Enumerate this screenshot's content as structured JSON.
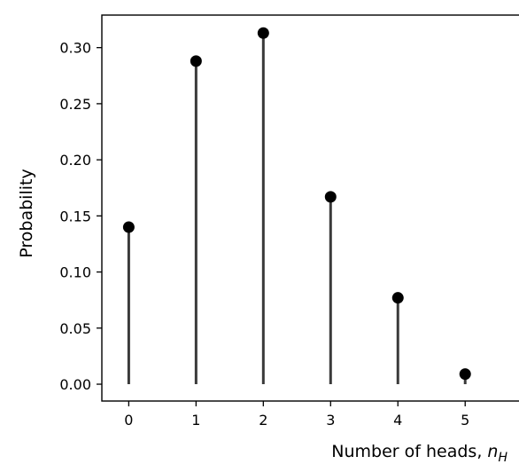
{
  "chart_data": {
    "type": "stem",
    "title": "",
    "xlabel": "Number of heads, ",
    "xlabel_math": "n",
    "xlabel_subscript": "H",
    "ylabel": "Probability",
    "x": [
      0,
      1,
      2,
      3,
      4,
      5
    ],
    "values": [
      0.14,
      0.288,
      0.313,
      0.167,
      0.077,
      0.009
    ],
    "xlim": [
      -0.4,
      5.8
    ],
    "ylim": [
      -0.015,
      0.329
    ],
    "xticks": [
      0,
      1,
      2,
      3,
      4,
      5
    ],
    "xtick_labels": [
      "0",
      "1",
      "2",
      "3",
      "4",
      "5"
    ],
    "yticks": [
      0.0,
      0.05,
      0.1,
      0.15,
      0.2,
      0.25,
      0.3
    ],
    "ytick_labels": [
      "0.00",
      "0.05",
      "0.10",
      "0.15",
      "0.20",
      "0.25",
      "0.30"
    ],
    "grid": false,
    "legend": "none",
    "colors": {
      "marker": "#000000",
      "stem": "#3a3a3a",
      "axes": "#000000"
    }
  }
}
